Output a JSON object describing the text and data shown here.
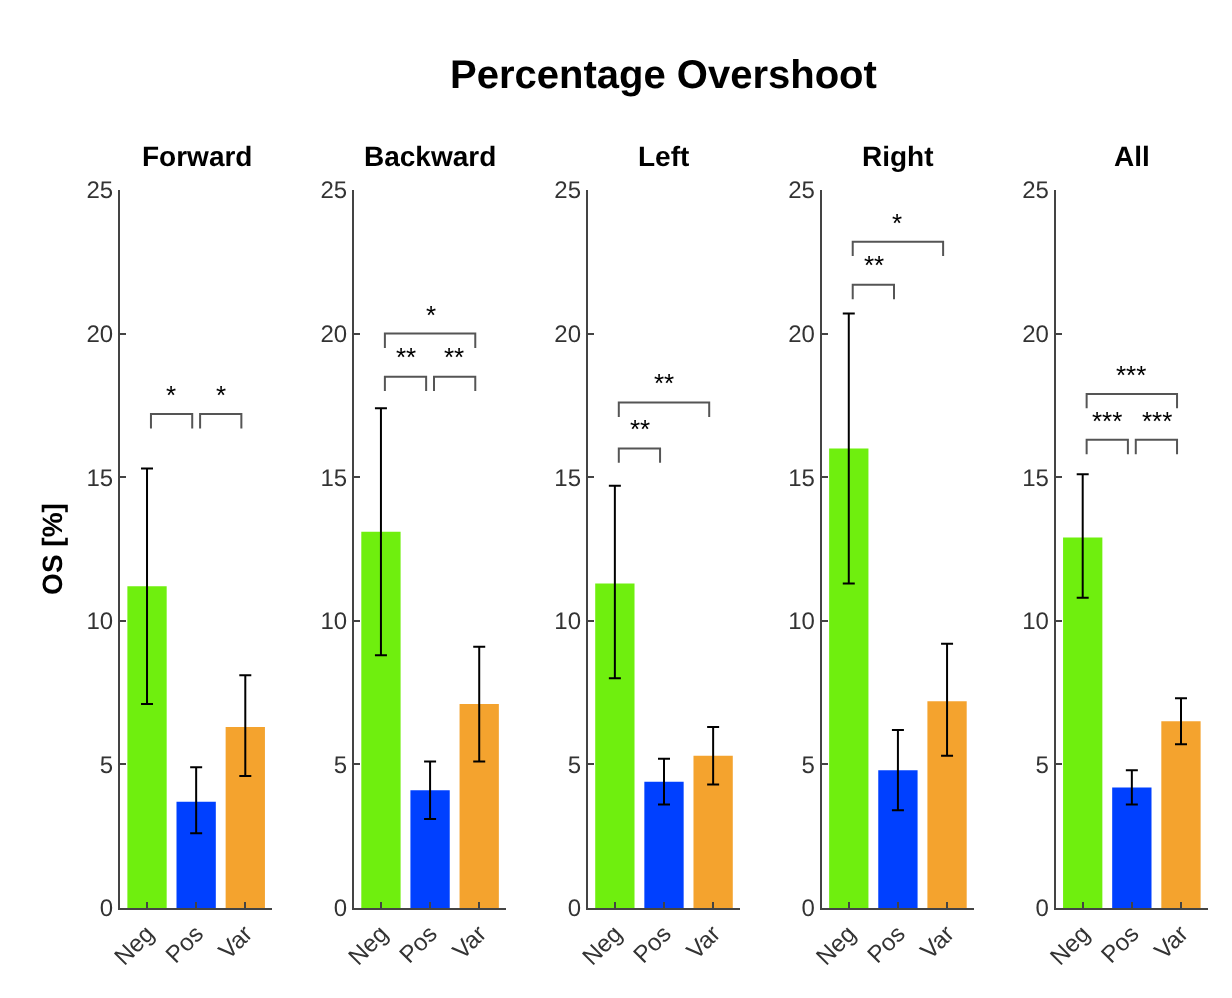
{
  "chart_data": [
    {
      "type": "bar",
      "title": "Forward",
      "ylabel": "OS [%]",
      "categories": [
        "Neg",
        "Pos",
        "Var"
      ],
      "values": [
        11.2,
        3.7,
        6.3
      ],
      "colors": [
        "#6fef0e",
        "#0040ff",
        "#f4a32e"
      ],
      "errors": [
        [
          7.1,
          15.3
        ],
        [
          2.6,
          4.9
        ],
        [
          4.6,
          8.1
        ]
      ],
      "ylim": [
        0,
        25
      ],
      "yticks": [
        0,
        5,
        10,
        15,
        20,
        25
      ],
      "annotations": [
        "Percentage Overshoot",
        "*",
        "*"
      ]
    },
    {
      "type": "bar",
      "title": "Backward",
      "categories": [
        "Neg",
        "Pos",
        "Var"
      ],
      "values": [
        13.1,
        4.1,
        7.1
      ],
      "colors": [
        "#6fef0e",
        "#0040ff",
        "#f4a32e"
      ],
      "errors": [
        [
          8.8,
          17.4
        ],
        [
          3.1,
          5.1
        ],
        [
          5.1,
          9.1
        ]
      ],
      "ylim": [
        0,
        25
      ],
      "yticks": [
        0,
        5,
        10,
        15,
        20,
        25
      ],
      "annotations": [
        "**",
        "**",
        "*"
      ]
    },
    {
      "type": "bar",
      "title": "Left",
      "categories": [
        "Neg",
        "Pos",
        "Var"
      ],
      "values": [
        11.3,
        4.4,
        5.3
      ],
      "colors": [
        "#6fef0e",
        "#0040ff",
        "#f4a32e"
      ],
      "errors": [
        [
          8.0,
          14.7
        ],
        [
          3.6,
          5.2
        ],
        [
          4.3,
          6.3
        ]
      ],
      "ylim": [
        0,
        25
      ],
      "yticks": [
        0,
        5,
        10,
        15,
        20,
        25
      ],
      "annotations": [
        "**",
        "**"
      ]
    },
    {
      "type": "bar",
      "title": "Right",
      "categories": [
        "Neg",
        "Pos",
        "Var"
      ],
      "values": [
        16.0,
        4.8,
        7.2
      ],
      "colors": [
        "#6fef0e",
        "#0040ff",
        "#f4a32e"
      ],
      "errors": [
        [
          11.3,
          20.7
        ],
        [
          3.4,
          6.2
        ],
        [
          5.3,
          9.2
        ]
      ],
      "ylim": [
        0,
        25
      ],
      "yticks": [
        0,
        5,
        10,
        15,
        20,
        25
      ],
      "annotations": [
        "**",
        "*"
      ]
    },
    {
      "type": "bar",
      "title": "All",
      "categories": [
        "Neg",
        "Pos",
        "Var"
      ],
      "values": [
        12.9,
        4.2,
        6.5
      ],
      "colors": [
        "#6fef0e",
        "#0040ff",
        "#f4a32e"
      ],
      "errors": [
        [
          10.8,
          15.1
        ],
        [
          3.6,
          4.8
        ],
        [
          5.7,
          7.3
        ]
      ],
      "ylim": [
        0,
        25
      ],
      "yticks": [
        0,
        5,
        10,
        15,
        20,
        25
      ],
      "annotations": [
        "***",
        "***",
        "***"
      ]
    }
  ]
}
